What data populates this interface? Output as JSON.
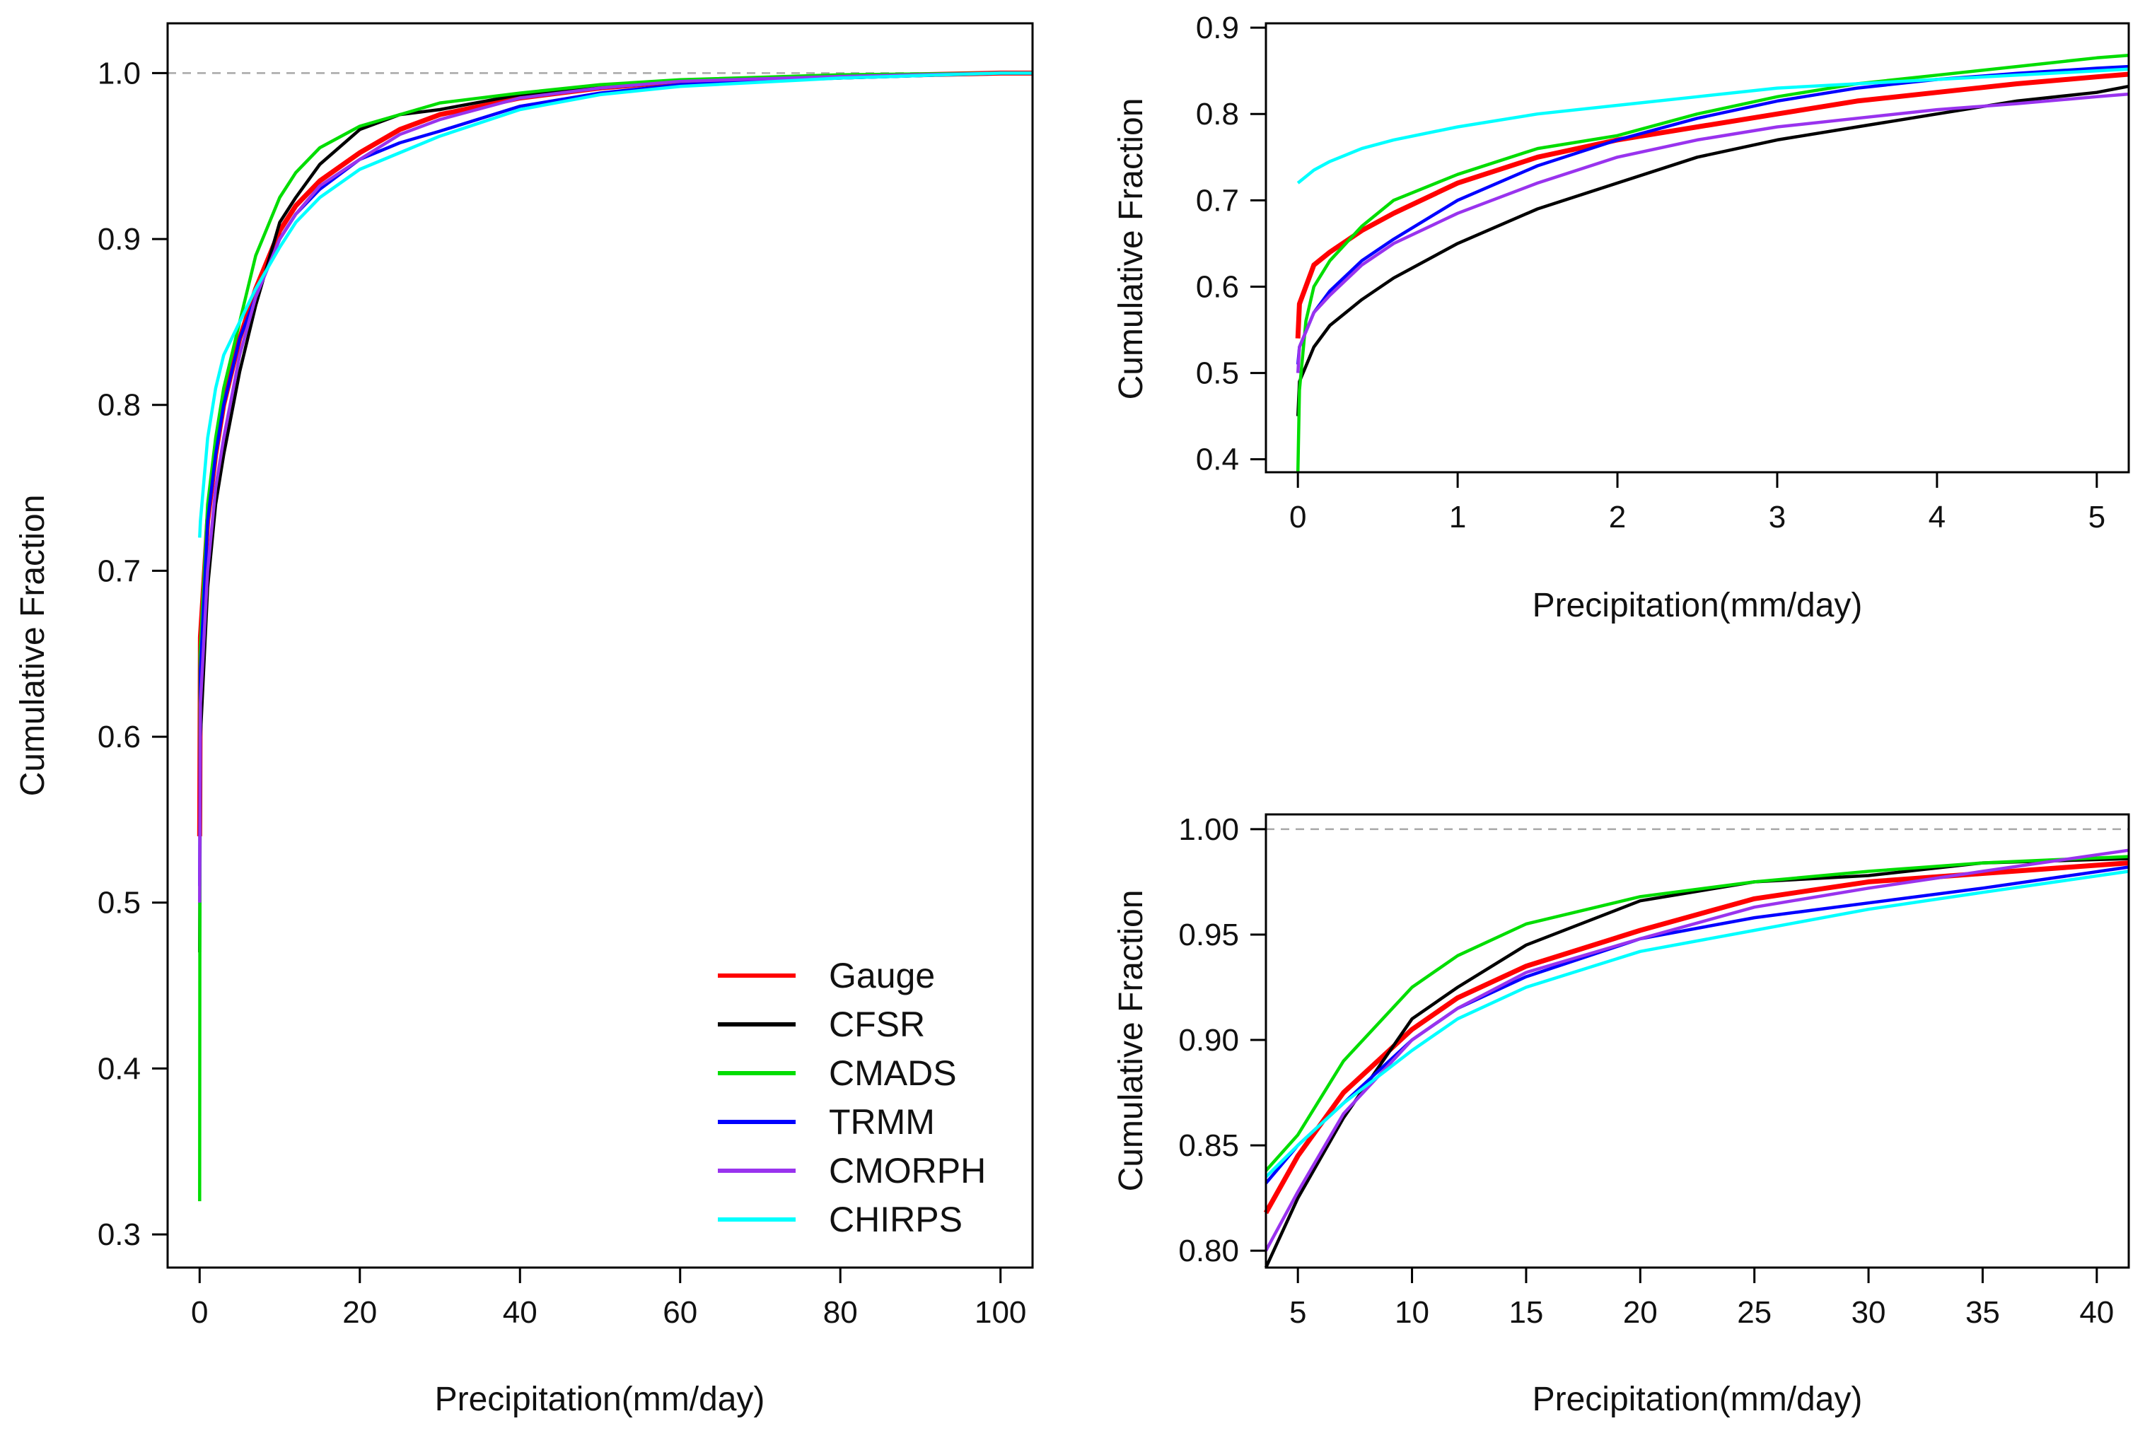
{
  "chart_data": [
    {
      "id": "left",
      "type": "line",
      "title": "",
      "xlabel": "Precipitation(mm/day)",
      "ylabel": "Cumulative Fraction",
      "xlim": [
        -4,
        104
      ],
      "ylim": [
        0.28,
        1.03
      ],
      "xticks": [
        0,
        20,
        40,
        60,
        80,
        100
      ],
      "yticks": [
        0.3,
        0.4,
        0.5,
        0.6,
        0.7,
        0.8,
        0.9,
        1.0
      ],
      "ytick_decimals": 1,
      "reference_line": 1.0,
      "legend": {
        "position": "bottom-right"
      },
      "series": [
        {
          "name": "Gauge",
          "color": "#ff0000",
          "x": [
            0,
            0.1,
            1,
            2,
            3,
            5,
            7,
            10,
            12,
            15,
            20,
            25,
            30,
            40,
            50,
            60,
            80,
            100,
            104
          ],
          "y": [
            0.54,
            0.66,
            0.73,
            0.77,
            0.8,
            0.84,
            0.87,
            0.905,
            0.92,
            0.935,
            0.952,
            0.966,
            0.975,
            0.985,
            0.991,
            0.995,
            0.998,
            1.0,
            1.0
          ]
        },
        {
          "name": "CFSR",
          "color": "#000000",
          "x": [
            0,
            0.1,
            1,
            2,
            3,
            5,
            7,
            10,
            12,
            15,
            20,
            25,
            30,
            40,
            50,
            60,
            80,
            100,
            104
          ],
          "y": [
            0.47,
            0.6,
            0.69,
            0.74,
            0.77,
            0.82,
            0.86,
            0.91,
            0.925,
            0.945,
            0.966,
            0.975,
            0.978,
            0.987,
            0.991,
            0.995,
            0.997,
            1.0,
            1.0
          ]
        },
        {
          "name": "CMADS",
          "color": "#00dd00",
          "x": [
            0,
            0.05,
            1,
            2,
            3,
            5,
            7,
            10,
            12,
            15,
            20,
            25,
            30,
            40,
            50,
            60,
            80,
            100,
            104
          ],
          "y": [
            0.32,
            0.65,
            0.74,
            0.78,
            0.81,
            0.85,
            0.89,
            0.925,
            0.94,
            0.955,
            0.968,
            0.975,
            0.982,
            0.988,
            0.993,
            0.996,
            0.999,
            1.0,
            1.0
          ]
        },
        {
          "name": "TRMM",
          "color": "#0000ff",
          "x": [
            0,
            0.1,
            1,
            2,
            3,
            5,
            7,
            10,
            12,
            15,
            20,
            25,
            30,
            40,
            50,
            60,
            80,
            100,
            104
          ],
          "y": [
            0.51,
            0.64,
            0.73,
            0.77,
            0.8,
            0.84,
            0.865,
            0.9,
            0.915,
            0.93,
            0.948,
            0.958,
            0.965,
            0.98,
            0.988,
            0.993,
            0.997,
            1.0,
            1.0
          ]
        },
        {
          "name": "CMORPH",
          "color": "#9933ee",
          "x": [
            0,
            0.1,
            1,
            2,
            3,
            5,
            7,
            10,
            12,
            15,
            20,
            25,
            30,
            40,
            50,
            60,
            80,
            100,
            104
          ],
          "y": [
            0.5,
            0.62,
            0.7,
            0.75,
            0.78,
            0.83,
            0.865,
            0.9,
            0.915,
            0.932,
            0.948,
            0.963,
            0.972,
            0.985,
            0.991,
            0.995,
            0.998,
            1.0,
            1.0
          ]
        },
        {
          "name": "CHIRPS",
          "color": "#00ffff",
          "x": [
            0,
            0.1,
            1,
            2,
            3,
            5,
            7,
            10,
            12,
            15,
            20,
            25,
            30,
            40,
            50,
            60,
            80,
            100,
            104
          ],
          "y": [
            0.72,
            0.73,
            0.78,
            0.81,
            0.83,
            0.85,
            0.87,
            0.895,
            0.91,
            0.925,
            0.942,
            0.952,
            0.962,
            0.978,
            0.987,
            0.992,
            0.997,
            1.0,
            1.0
          ]
        }
      ]
    },
    {
      "id": "top-right",
      "type": "line",
      "title": "",
      "xlabel": "Precipitation(mm/day)",
      "ylabel": "Cumulative Fraction",
      "xlim": [
        -0.2,
        5.2
      ],
      "ylim": [
        0.385,
        0.905
      ],
      "xticks": [
        0,
        1,
        2,
        3,
        4,
        5
      ],
      "yticks": [
        0.4,
        0.5,
        0.6,
        0.7,
        0.8,
        0.9
      ],
      "ytick_decimals": 1,
      "series": [
        {
          "name": "Gauge",
          "color": "#ff0000",
          "x": [
            0,
            0.01,
            0.1,
            0.2,
            0.4,
            0.6,
            1.0,
            1.5,
            2,
            2.5,
            3,
            3.5,
            4,
            4.5,
            5,
            5.2
          ],
          "y": [
            0.54,
            0.58,
            0.625,
            0.64,
            0.665,
            0.685,
            0.72,
            0.75,
            0.77,
            0.785,
            0.8,
            0.815,
            0.825,
            0.835,
            0.843,
            0.846
          ]
        },
        {
          "name": "CFSR",
          "color": "#000000",
          "x": [
            0,
            0.01,
            0.1,
            0.2,
            0.4,
            0.6,
            1.0,
            1.5,
            2,
            2.5,
            3,
            3.5,
            4,
            4.5,
            5,
            5.2
          ],
          "y": [
            0.45,
            0.49,
            0.53,
            0.555,
            0.585,
            0.61,
            0.65,
            0.69,
            0.72,
            0.75,
            0.77,
            0.785,
            0.8,
            0.815,
            0.825,
            0.832
          ]
        },
        {
          "name": "CMADS",
          "color": "#00dd00",
          "x": [
            0,
            0.01,
            0.05,
            0.1,
            0.2,
            0.4,
            0.6,
            1.0,
            1.5,
            2,
            2.5,
            3,
            3.5,
            4,
            4.5,
            5,
            5.2
          ],
          "y": [
            0.385,
            0.48,
            0.56,
            0.6,
            0.63,
            0.67,
            0.7,
            0.73,
            0.76,
            0.775,
            0.8,
            0.82,
            0.835,
            0.845,
            0.855,
            0.865,
            0.868
          ]
        },
        {
          "name": "TRMM",
          "color": "#0000ff",
          "x": [
            0,
            0.01,
            0.1,
            0.2,
            0.4,
            0.6,
            1.0,
            1.5,
            2,
            2.5,
            3,
            3.5,
            4,
            4.5,
            5,
            5.2
          ],
          "y": [
            0.51,
            0.53,
            0.57,
            0.595,
            0.63,
            0.655,
            0.7,
            0.74,
            0.77,
            0.795,
            0.815,
            0.83,
            0.84,
            0.847,
            0.853,
            0.855
          ]
        },
        {
          "name": "CMORPH",
          "color": "#9933ee",
          "x": [
            0,
            0.01,
            0.1,
            0.2,
            0.4,
            0.6,
            1.0,
            1.5,
            2,
            2.5,
            3,
            3.5,
            4,
            4.5,
            5,
            5.2
          ],
          "y": [
            0.5,
            0.53,
            0.57,
            0.59,
            0.625,
            0.65,
            0.685,
            0.72,
            0.75,
            0.77,
            0.785,
            0.795,
            0.805,
            0.812,
            0.82,
            0.823
          ]
        },
        {
          "name": "CHIRPS",
          "color": "#00ffff",
          "x": [
            0,
            0.1,
            0.2,
            0.4,
            0.6,
            1.0,
            1.5,
            2,
            2.5,
            3,
            3.5,
            4,
            4.5,
            5,
            5.2
          ],
          "y": [
            0.72,
            0.735,
            0.745,
            0.76,
            0.77,
            0.785,
            0.8,
            0.81,
            0.82,
            0.83,
            0.835,
            0.84,
            0.845,
            0.85,
            0.852
          ]
        }
      ]
    },
    {
      "id": "bottom-right",
      "type": "line",
      "title": "",
      "xlabel": "Precipitation(mm/day)",
      "ylabel": "Cumulative Fraction",
      "xlim": [
        3.6,
        41.4
      ],
      "ylim": [
        0.792,
        1.007
      ],
      "xticks": [
        5,
        10,
        15,
        20,
        25,
        30,
        35,
        40
      ],
      "yticks": [
        0.8,
        0.85,
        0.9,
        0.95,
        1.0
      ],
      "ytick_decimals": 2,
      "reference_line": 1.0,
      "series": [
        {
          "name": "Gauge",
          "color": "#ff0000",
          "x": [
            3.6,
            5,
            7,
            10,
            12,
            15,
            20,
            25,
            30,
            35,
            41.4
          ],
          "y": [
            0.818,
            0.845,
            0.875,
            0.905,
            0.92,
            0.935,
            0.952,
            0.967,
            0.975,
            0.979,
            0.984
          ]
        },
        {
          "name": "CFSR",
          "color": "#000000",
          "x": [
            3.6,
            5,
            7,
            10,
            12,
            15,
            20,
            25,
            30,
            35,
            41.4
          ],
          "y": [
            0.792,
            0.825,
            0.863,
            0.91,
            0.925,
            0.945,
            0.966,
            0.975,
            0.978,
            0.984,
            0.986
          ]
        },
        {
          "name": "CMADS",
          "color": "#00dd00",
          "x": [
            3.6,
            5,
            7,
            10,
            12,
            15,
            20,
            25,
            30,
            35,
            41.4
          ],
          "y": [
            0.838,
            0.855,
            0.89,
            0.925,
            0.94,
            0.955,
            0.968,
            0.975,
            0.98,
            0.984,
            0.987
          ]
        },
        {
          "name": "TRMM",
          "color": "#0000ff",
          "x": [
            3.6,
            5,
            7,
            10,
            12,
            15,
            20,
            25,
            30,
            35,
            41.4
          ],
          "y": [
            0.832,
            0.85,
            0.87,
            0.9,
            0.915,
            0.93,
            0.948,
            0.958,
            0.965,
            0.972,
            0.982
          ]
        },
        {
          "name": "CMORPH",
          "color": "#9933ee",
          "x": [
            3.6,
            5,
            7,
            10,
            12,
            15,
            20,
            25,
            30,
            35,
            41.4
          ],
          "y": [
            0.8,
            0.828,
            0.865,
            0.9,
            0.915,
            0.932,
            0.948,
            0.963,
            0.972,
            0.98,
            0.99
          ]
        },
        {
          "name": "CHIRPS",
          "color": "#00ffff",
          "x": [
            3.6,
            5,
            7,
            10,
            12,
            15,
            20,
            25,
            30,
            35,
            41.4
          ],
          "y": [
            0.835,
            0.85,
            0.87,
            0.895,
            0.91,
            0.925,
            0.942,
            0.952,
            0.962,
            0.97,
            0.98
          ]
        }
      ]
    }
  ]
}
